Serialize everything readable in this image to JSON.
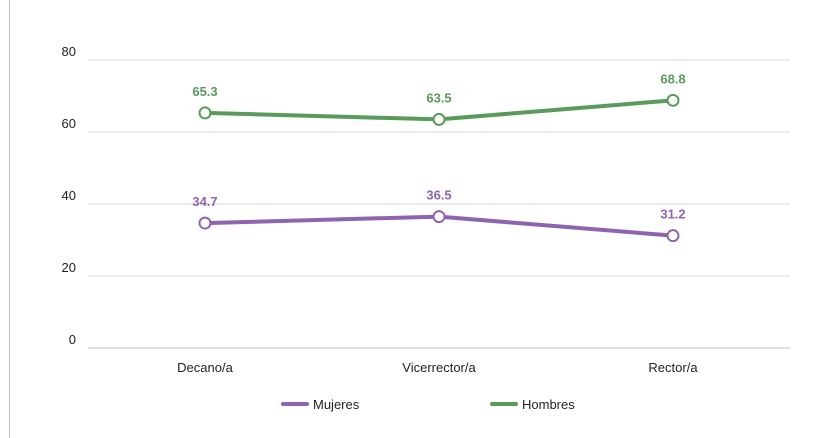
{
  "chart_data": {
    "type": "line",
    "title": "",
    "xlabel": "",
    "ylabel": "",
    "categories": [
      "Decano/a",
      "Vicerrector/a",
      "Rector/a"
    ],
    "ylim": [
      0,
      80
    ],
    "yticks": [
      "0",
      "20",
      "40",
      "60",
      "80"
    ],
    "ytick_values": [
      0,
      20,
      40,
      60,
      80
    ],
    "grid": true,
    "legend_position": "bottom",
    "series": [
      {
        "name": "Mujeres",
        "values": [
          34.7,
          36.5,
          31.2
        ],
        "labels": [
          "34.7",
          "36.5",
          "31.2"
        ],
        "color": "#8e63b0"
      },
      {
        "name": "Hombres",
        "values": [
          65.3,
          63.5,
          68.8
        ],
        "labels": [
          "65.3",
          "63.5",
          "68.8"
        ],
        "color": "#5a9a5a"
      }
    ]
  }
}
